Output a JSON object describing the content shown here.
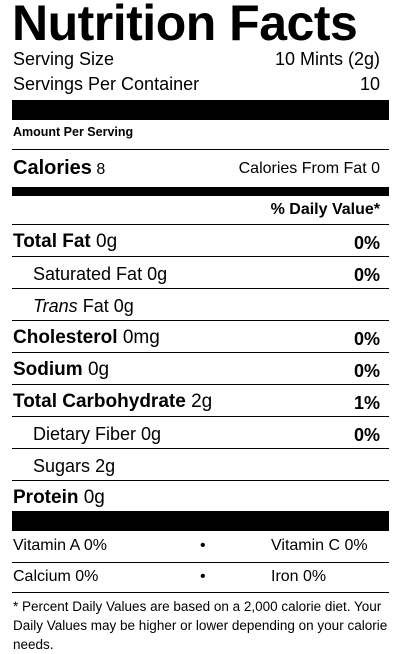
{
  "title": "Nutrition Facts",
  "serving": {
    "size_label": "Serving Size",
    "size_value": "10 Mints (2g)",
    "per_container_label": "Servings Per Container",
    "per_container_value": "10"
  },
  "amount_per_serving": "Amount Per Serving",
  "calories": {
    "label": "Calories",
    "value": "8",
    "from_fat_label": "Calories From Fat",
    "from_fat_value": "0"
  },
  "daily_value_header": "% Daily Value*",
  "nutrients": {
    "total_fat": {
      "label": "Total Fat",
      "amount": "0g",
      "dv": "0%"
    },
    "saturated_fat": {
      "label": "Saturated Fat",
      "amount": "0g",
      "dv": "0%"
    },
    "trans_fat": {
      "italic": "Trans",
      "label": "Fat",
      "amount": "0g"
    },
    "cholesterol": {
      "label": "Cholesterol",
      "amount": "0mg",
      "dv": "0%"
    },
    "sodium": {
      "label": "Sodium",
      "amount": "0g",
      "dv": "0%"
    },
    "total_carbohydrate": {
      "label": "Total Carbohydrate",
      "amount": "2g",
      "dv": "1%"
    },
    "dietary_fiber": {
      "label": "Dietary Fiber",
      "amount": "0g",
      "dv": "0%"
    },
    "sugars": {
      "label": "Sugars",
      "amount": "2g"
    },
    "protein": {
      "label": "Protein",
      "amount": "0g"
    }
  },
  "vitamins": {
    "vitamin_a": "Vitamin A 0%",
    "vitamin_c": "Vitamin C 0%",
    "calcium": "Calcium 0%",
    "iron": "Iron 0%",
    "separator": "•"
  },
  "footnote": "* Percent Daily Values are based on a 2,000 calorie diet. Your Daily Values may be higher or lower depending on your calorie needs."
}
